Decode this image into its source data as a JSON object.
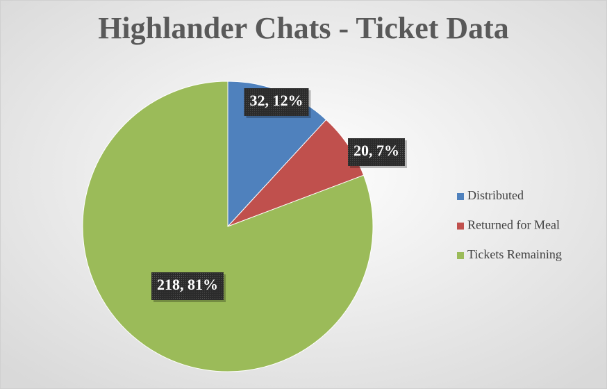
{
  "chart_data": {
    "type": "pie",
    "title": "Highlander Chats - Ticket Data",
    "categories": [
      "Distributed",
      "Returned for Meal",
      "Tickets Remaining"
    ],
    "values": [
      32,
      20,
      218
    ],
    "value_labels": [
      "32, 12%",
      "20, 7%",
      "218, 81%"
    ],
    "colors": [
      "#4f81bd",
      "#c0504d",
      "#9bbb59"
    ],
    "legend": "right"
  }
}
